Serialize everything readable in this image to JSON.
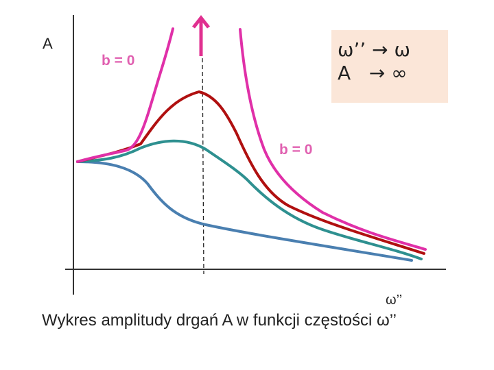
{
  "axes": {
    "y_label": "A",
    "x_label": "ω’’"
  },
  "labels": {
    "b_zero_top": "b = 0",
    "b_zero_mid": "b = 0"
  },
  "info_box": {
    "line1": "ω’’ → ω",
    "line2": "A   → ∞"
  },
  "caption": "Wykres amplitudy drgań A w funkcji częstości ω’’",
  "colors": {
    "axis": "#333333",
    "magenta": "#e030a8",
    "red": "#b01010",
    "teal": "#2e9090",
    "blue": "#4a7fb0",
    "pink_label": "#e060b0",
    "arrow": "#e03090",
    "box_fill": "#fbe6d8"
  },
  "curves": [
    {
      "id": "magenta",
      "meaning": "b = 0"
    },
    {
      "id": "red"
    },
    {
      "id": "teal"
    },
    {
      "id": "blue"
    }
  ]
}
